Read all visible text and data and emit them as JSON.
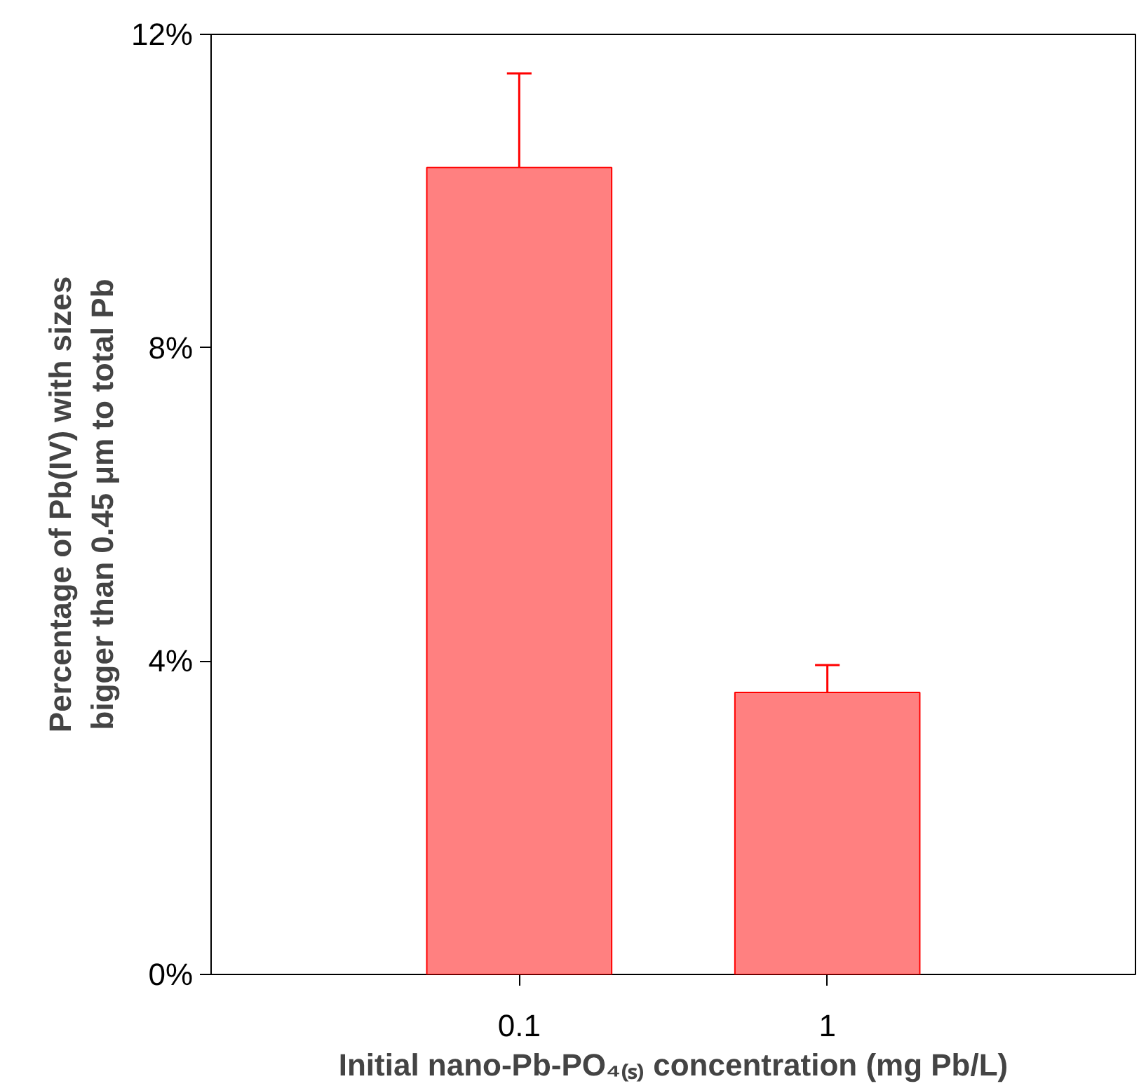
{
  "chart_data": {
    "type": "bar",
    "xlabel": "Initial nano-Pb-PO₄₍ₛ₎ concentration (mg Pb/L)",
    "ylabel": "Percentage of Pb(IV) with sizes bigger than 0.45 μm to total Pb",
    "categories": [
      "0.1",
      "1"
    ],
    "values": [
      10.3,
      3.6
    ],
    "errors": [
      [
        10.3,
        11.5
      ],
      [
        3.6,
        3.95
      ]
    ],
    "color": "#ff8080",
    "ylim": [
      0,
      12
    ],
    "yticks": [
      {
        "value": 0,
        "label": "0%"
      },
      {
        "value": 4,
        "label": "4%"
      },
      {
        "value": 8,
        "label": "8%"
      },
      {
        "value": 12,
        "label": "12%"
      }
    ],
    "grid": false
  }
}
